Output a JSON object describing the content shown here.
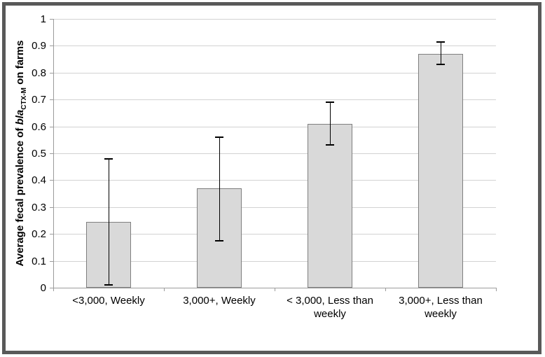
{
  "chart_data": {
    "type": "bar",
    "title": "",
    "categories": [
      "<3,000, Weekly",
      "3,000+, Weekly",
      "< 3,000, Less than weekly",
      "3,000+, Less than weekly"
    ],
    "values": [
      0.245,
      0.37,
      0.61,
      0.87
    ],
    "error_low": [
      0.01,
      0.175,
      0.53,
      0.83
    ],
    "error_high": [
      0.48,
      0.56,
      0.69,
      0.915
    ],
    "xlabel": "",
    "ylabel": "Average fecal prevalence of blaCTX-M on farms",
    "ylabel_parts": {
      "prefix": "Average fecal prevalence of ",
      "gene_italic": "bla",
      "gene_subscript": "CTX-M",
      "suffix": " on farms"
    },
    "ylim": [
      0,
      1
    ],
    "yticks": [
      "0",
      "0.1",
      "0.2",
      "0.3",
      "0.4",
      "0.5",
      "0.6",
      "0.7",
      "0.8",
      "0.9",
      "1"
    ],
    "grid": true,
    "legend": null,
    "colors": {
      "bar_fill": "#d9d9d9",
      "bar_border": "#7f7f7f",
      "error_bar": "#000000",
      "gridline": "#d2d2d2",
      "axis": "#9b9b9b",
      "frame_border": "#595959",
      "text": "#000000"
    }
  }
}
